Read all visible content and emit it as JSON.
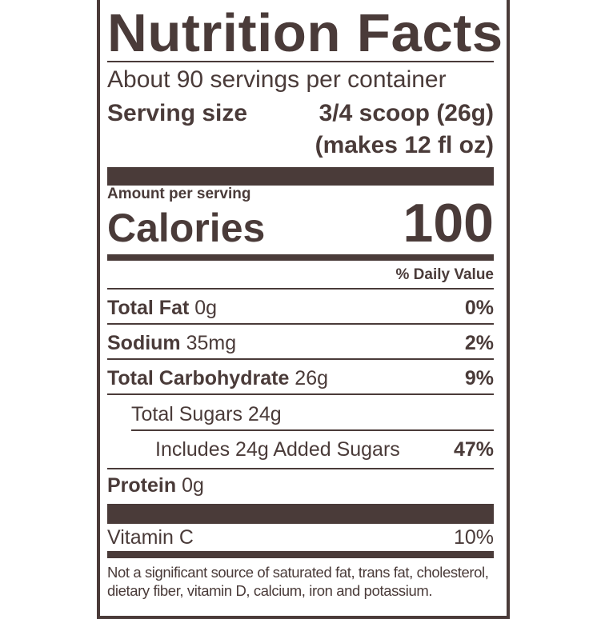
{
  "title": "Nutrition Facts",
  "servings_per_container": "About 90 servings per container",
  "serving_size": {
    "label": "Serving size",
    "value": "3/4 scoop (26g)",
    "note": "(makes 12 fl oz)"
  },
  "amount_per_serving": "Amount per serving",
  "calories": {
    "label": "Calories",
    "value": "100"
  },
  "daily_value_header": "% Daily Value",
  "nutrients": [
    {
      "label": "Total Fat",
      "amount": "0g",
      "dv": "0%"
    },
    {
      "label": "Sodium",
      "amount": "35mg",
      "dv": "2%"
    },
    {
      "label": "Total Carbohydrate",
      "amount": "26g",
      "dv": "9%"
    },
    {
      "label": "Total Sugars 24g",
      "amount": "",
      "dv": ""
    },
    {
      "label": "Includes 24g Added Sugars",
      "amount": "",
      "dv": "47%"
    },
    {
      "label": "Protein",
      "amount": "0g",
      "dv": ""
    }
  ],
  "vitamins": [
    {
      "label": "Vitamin C",
      "dv": "10%"
    }
  ],
  "footnote": [
    "Not a significant source of saturated fat, trans fat, cholesterol,",
    "dietary fiber, vitamin D, calcium, iron and potassium."
  ],
  "colors": {
    "ink": "#4a3b39",
    "background": "#ffffff"
  }
}
